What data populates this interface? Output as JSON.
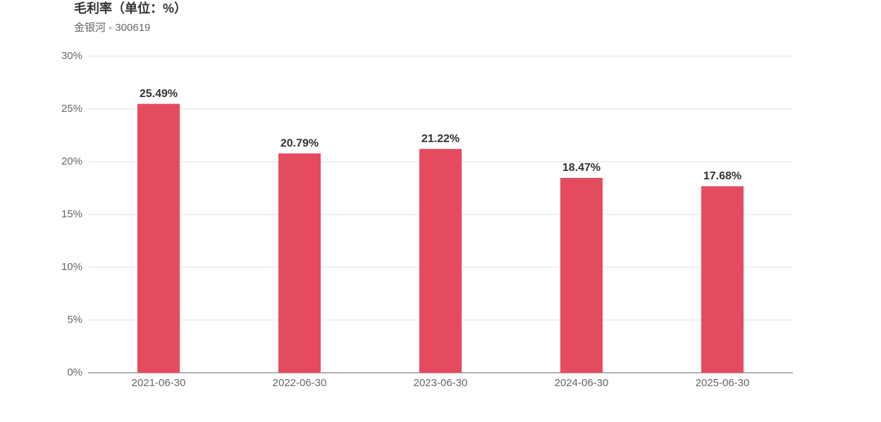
{
  "chart_data": {
    "type": "bar",
    "title": "毛利率（单位：%）",
    "subtitle": "金银河 - 300619",
    "categories": [
      "2021-06-30",
      "2022-06-30",
      "2023-06-30",
      "2024-06-30",
      "2025-06-30"
    ],
    "values": [
      25.49,
      20.79,
      21.22,
      18.47,
      17.68
    ],
    "value_labels": [
      "25.49%",
      "20.79%",
      "21.22%",
      "18.47%",
      "17.68%"
    ],
    "color": "#e54b5e",
    "ylim": [
      0,
      30
    ],
    "yticks": [
      {
        "value": 0,
        "label": "0%"
      },
      {
        "value": 5,
        "label": "5%"
      },
      {
        "value": 10,
        "label": "10%"
      },
      {
        "value": 15,
        "label": "15%"
      },
      {
        "value": 20,
        "label": "20%"
      },
      {
        "value": 25,
        "label": "25%"
      },
      {
        "value": 30,
        "label": "30%"
      }
    ],
    "grid": true
  }
}
